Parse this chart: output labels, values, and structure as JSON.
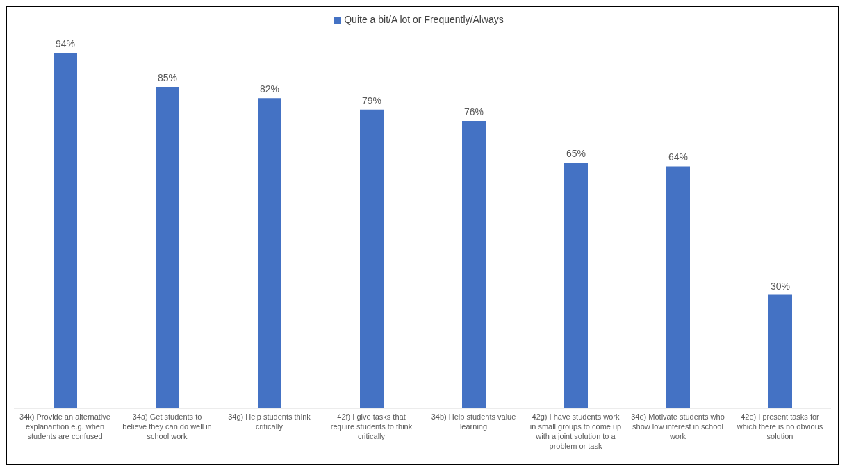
{
  "chart_data": {
    "type": "bar",
    "categories": [
      "34k) Provide an alternative explanantion e.g. when students are confused",
      "34a) Get students to believe they can do well in school work",
      "34g) Help students think critically",
      "42f) I give tasks that require students to think critically",
      "34b) Help students value learning",
      "42g) I have students work in small groups to come up with a joint solution to a problem or task",
      "34e) Motivate students who show low interest in school work",
      "42e) I present tasks for which there is no obvious solution"
    ],
    "series": [
      {
        "name": "Quite a bit/A lot or Frequently/Always",
        "color": "#4472c4",
        "values": [
          94,
          85,
          82,
          79,
          76,
          65,
          64,
          30
        ],
        "value_labels": [
          "94%",
          "85%",
          "82%",
          "79%",
          "76%",
          "65%",
          "64%",
          "30%"
        ]
      }
    ],
    "legend": "top"
  }
}
